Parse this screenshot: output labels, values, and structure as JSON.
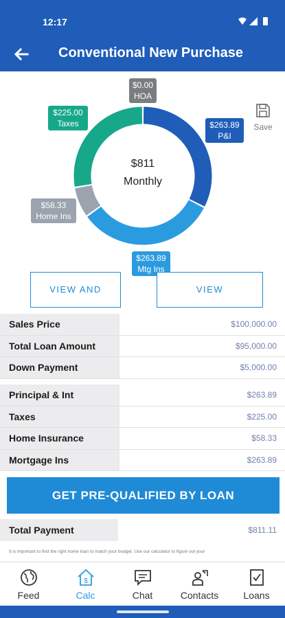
{
  "status_bar": {
    "time": "12:17"
  },
  "app_bar": {
    "title": "Conventional New Purchase"
  },
  "chart": {
    "center_amount": "$811",
    "center_label": "Monthly",
    "save_label": "Save",
    "segments": [
      {
        "name": "P&I",
        "amount": "$263.89",
        "label": "P&I",
        "value": 263.89,
        "color": "#1f5db8"
      },
      {
        "name": "Mtg Ins",
        "amount": "$263.89",
        "label": "Mtg Ins",
        "value": 263.89,
        "color": "#2b9be0"
      },
      {
        "name": "Home Ins",
        "amount": "$58.33",
        "label": "Home Ins",
        "value": 58.33,
        "color": "#9aa3ae"
      },
      {
        "name": "Taxes",
        "amount": "$225.00",
        "label": "Taxes",
        "value": 225.0,
        "color": "#17a88a"
      },
      {
        "name": "HOA",
        "amount": "$0.00",
        "label": "HOA",
        "value": 0.0,
        "color": "#7a7d80"
      }
    ]
  },
  "buttons": {
    "view_share": "VIEW AND SHARE",
    "view_amortization": "VIEW AMORTIZATION",
    "prequalify": "GET PRE-QUALIFIED BY LOAN"
  },
  "loan_rows": [
    {
      "label": "Sales Price",
      "value": "$100,000.00"
    },
    {
      "label": "Total Loan Amount",
      "value": "$95,000.00"
    },
    {
      "label": "Down Payment",
      "value": "$5,000.00"
    }
  ],
  "payment_rows": [
    {
      "label": "Principal & Int",
      "value": "$263.89"
    },
    {
      "label": "Taxes",
      "value": "$225.00"
    },
    {
      "label": "Home Insurance",
      "value": "$58.33"
    },
    {
      "label": "Mortgage Ins",
      "value": "$263.89"
    }
  ],
  "total": {
    "label": "Total Payment",
    "value": "$811.11"
  },
  "disclaimer": "It is important to find the right home loan to match your budget. Use our calculator to figure out your",
  "nav": [
    {
      "label": "Feed",
      "icon": "globe-icon"
    },
    {
      "label": "Calc",
      "icon": "calculator-house-icon"
    },
    {
      "label": "Chat",
      "icon": "chat-icon"
    },
    {
      "label": "Contacts",
      "icon": "contacts-icon"
    },
    {
      "label": "Loans",
      "icon": "loans-document-icon"
    }
  ],
  "colors": {
    "primary": "#1f5db8",
    "accent": "#1f8ad6",
    "active_nav": "#2b9be0"
  }
}
